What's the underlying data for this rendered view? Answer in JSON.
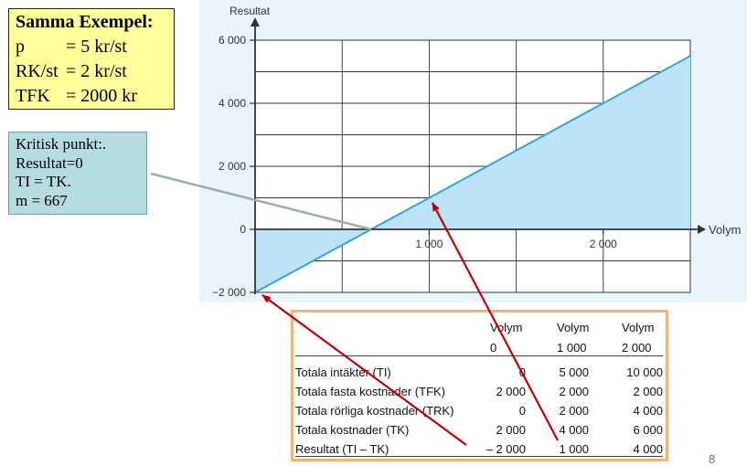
{
  "example_box": {
    "title": "Samma Exempel:",
    "rows": [
      {
        "key": "p",
        "value": "= 5 kr/st"
      },
      {
        "key": "RK/st",
        "value": "= 2 kr/st"
      },
      {
        "key": "TFK",
        "value": "= 2000 kr"
      }
    ]
  },
  "critical_box": {
    "lines": [
      "Kritisk punkt:.",
      "Resultat=0",
      "TI = TK.",
      "m = 667"
    ]
  },
  "chart_data": {
    "type": "line",
    "ylabel": "Resultat",
    "xlabel": "Volym",
    "xlim": [
      0,
      2500
    ],
    "ylim": [
      -2000,
      6000
    ],
    "x_ticks": [
      {
        "value": 1000,
        "label": "1 000"
      },
      {
        "value": 2000,
        "label": "2 000"
      }
    ],
    "y_ticks": [
      {
        "value": 6000,
        "label": "6 000"
      },
      {
        "value": 4000,
        "label": "4 000"
      },
      {
        "value": 2000,
        "label": "2 000"
      },
      {
        "value": 0,
        "label": "0"
      },
      {
        "value": -2000,
        "label": "−2 000"
      }
    ],
    "grid": true,
    "series": [
      {
        "x": [
          0,
          2500
        ],
        "y": [
          -2000,
          5500
        ],
        "color": "#29a8df",
        "fill": "#bfe3f6"
      }
    ]
  },
  "table": {
    "headers": [
      {
        "line1": "Volym",
        "line2": "0"
      },
      {
        "line1": "Volym",
        "line2": "1 000"
      },
      {
        "line1": "Volym",
        "line2": "2 000"
      }
    ],
    "rows": [
      {
        "label": "Totala intäkter (TI)",
        "v": [
          "0",
          "5 000",
          "10 000"
        ]
      },
      {
        "label": "Totala fasta kostnader (TFK)",
        "v": [
          "2 000",
          "2 000",
          "2 000"
        ]
      },
      {
        "label": "Totala rörliga kostnader (TRK)",
        "v": [
          "0",
          "2 000",
          "4 000"
        ]
      },
      {
        "label": "Totala kostnader (TK)",
        "v": [
          "2 000",
          "4 000",
          "6 000"
        ]
      },
      {
        "label": "Resultat (TI – TK)",
        "v": [
          "– 2 000",
          "1 000",
          "4 000"
        ]
      }
    ]
  },
  "page_number": "8",
  "colors": {
    "line": "#29a8df",
    "fill": "#bfe3f6",
    "arrow": "#c00000",
    "connector": "#9aaeb0"
  }
}
